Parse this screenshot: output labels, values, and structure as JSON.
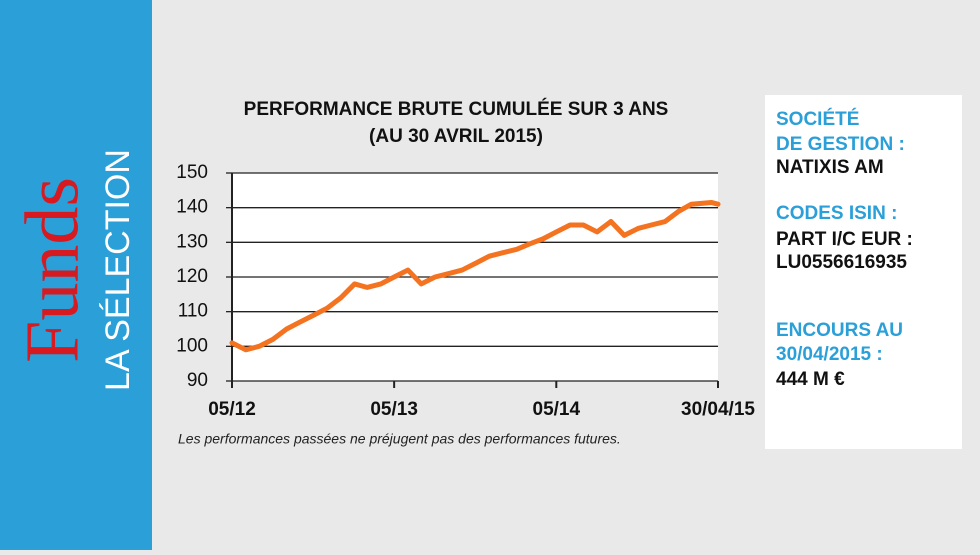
{
  "sidebar": {
    "brand": "Funds",
    "subtitle": "LA SÉLECTION"
  },
  "info": {
    "items": [
      {
        "label_lines": [
          "SOCIÉTÉ",
          "DE GESTION :"
        ],
        "value_lines": [
          "NATIXIS AM"
        ]
      },
      {
        "label_lines": [
          "CODES ISIN :"
        ],
        "value_lines": [
          "PART I/C EUR :",
          "LU0556616935"
        ]
      },
      {
        "label_lines": [
          "ENCOURS AU",
          "30/04/2015 :"
        ],
        "value_lines": [
          "444 M €"
        ]
      }
    ]
  },
  "chart_data": {
    "type": "line",
    "title": "PERFORMANCE BRUTE CUMULÉE SUR 3 ANS",
    "subtitle": "(AU 30 AVRIL 2015)",
    "note": "Les performances passées ne préjugent pas des performances futures.",
    "color": "#f47320",
    "x": [
      "2012-05-01",
      "2012-06-01",
      "2012-07-01",
      "2012-08-01",
      "2012-09-01",
      "2012-10-01",
      "2012-11-01",
      "2012-12-01",
      "2013-01-01",
      "2013-02-01",
      "2013-03-01",
      "2013-04-01",
      "2013-05-01",
      "2013-06-01",
      "2013-07-01",
      "2013-08-01",
      "2013-09-01",
      "2013-10-01",
      "2013-11-01",
      "2013-12-01",
      "2014-01-01",
      "2014-02-01",
      "2014-03-01",
      "2014-04-01",
      "2014-05-01",
      "2014-06-01",
      "2014-07-01",
      "2014-08-01",
      "2014-09-01",
      "2014-10-01",
      "2014-11-01",
      "2014-12-01",
      "2015-01-01",
      "2015-02-01",
      "2015-03-01",
      "2015-04-15",
      "2015-04-30"
    ],
    "values": [
      101,
      99,
      100,
      102,
      105,
      107,
      109,
      111,
      114,
      118,
      117,
      118,
      120,
      122,
      118,
      120,
      121,
      122,
      124,
      126,
      127,
      128,
      129.5,
      131,
      133,
      135,
      135,
      133,
      136,
      132,
      134,
      135,
      136,
      139,
      141,
      141.5,
      141
    ],
    "xlim": [
      "2012-05-01",
      "2015-04-30"
    ],
    "xticks": [
      {
        "value": "2012-05-01",
        "label": "05/12"
      },
      {
        "value": "2013-05-01",
        "label": "05/13"
      },
      {
        "value": "2014-05-01",
        "label": "05/14"
      },
      {
        "value": "2015-04-30",
        "label": "30/04/15"
      }
    ],
    "ylim": [
      90,
      150
    ],
    "yticks": [
      90,
      100,
      110,
      120,
      130,
      140,
      150
    ],
    "grid": true
  }
}
